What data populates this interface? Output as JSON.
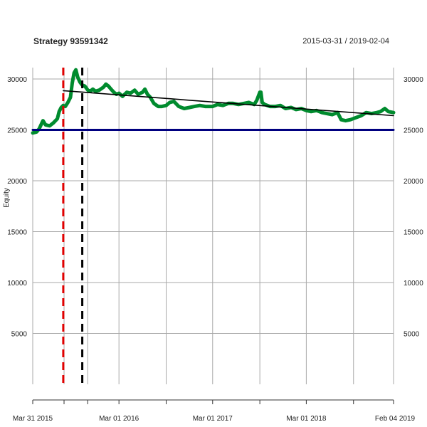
{
  "chart_data": {
    "type": "line",
    "title": "Strategy 93591342",
    "subtitle": "2015-03-31 / 2019-02-04",
    "xlabel": "",
    "ylabel": "Equity",
    "ylim": [
      0,
      31000
    ],
    "xlim": [
      "2015-03-31",
      "2019-02-04"
    ],
    "yticks": [
      5000,
      10000,
      15000,
      20000,
      25000,
      30000
    ],
    "xticks": [
      {
        "label": "Mar 31 2015",
        "date": "2015-03-31"
      },
      {
        "label": "Mar 01 2016",
        "date": "2016-03-01"
      },
      {
        "label": "Mar 01 2017",
        "date": "2017-03-01"
      },
      {
        "label": "Mar 01 2018",
        "date": "2018-03-01"
      },
      {
        "label": "Feb 04 2019",
        "date": "2019-02-04"
      }
    ],
    "minor_xgrid": [
      "2015-07-31",
      "2015-10-31",
      "2016-09-01",
      "2017-09-01",
      "2018-09-01"
    ],
    "grid": true,
    "colors": {
      "equity": "#008b2e",
      "baseline": "#000080",
      "trend": "#000000",
      "marker1": "#e00000",
      "marker2": "#000000",
      "grid": "#a9a9a9"
    },
    "series": [
      {
        "style": "equity",
        "x": [
          "2015-03-31",
          "2015-04-15",
          "2015-04-25",
          "2015-05-10",
          "2015-05-20",
          "2015-06-05",
          "2015-06-20",
          "2015-07-05",
          "2015-07-12",
          "2015-07-20",
          "2015-07-28",
          "2015-08-05",
          "2015-08-15",
          "2015-08-25",
          "2015-09-01",
          "2015-09-08",
          "2015-09-15",
          "2015-09-22",
          "2015-10-01",
          "2015-10-10",
          "2015-10-20",
          "2015-11-01",
          "2015-11-10",
          "2015-11-20",
          "2015-12-01",
          "2015-12-15",
          "2016-01-01",
          "2016-01-10",
          "2016-01-20",
          "2016-01-30",
          "2016-02-10",
          "2016-02-20",
          "2016-03-01",
          "2016-03-15",
          "2016-04-01",
          "2016-04-15",
          "2016-05-01",
          "2016-05-15",
          "2016-06-01",
          "2016-06-10",
          "2016-06-20",
          "2016-07-01",
          "2016-07-15",
          "2016-08-01",
          "2016-08-15",
          "2016-09-01",
          "2016-09-15",
          "2016-10-01",
          "2016-10-20",
          "2016-11-10",
          "2016-12-01",
          "2016-12-20",
          "2017-01-10",
          "2017-02-01",
          "2017-03-01",
          "2017-03-20",
          "2017-04-10",
          "2017-05-01",
          "2017-05-20",
          "2017-06-10",
          "2017-07-01",
          "2017-07-20",
          "2017-08-10",
          "2017-08-20",
          "2017-09-01",
          "2017-09-05",
          "2017-09-10",
          "2017-09-20",
          "2017-10-10",
          "2017-11-01",
          "2017-11-20",
          "2017-12-10",
          "2018-01-01",
          "2018-01-20",
          "2018-02-10",
          "2018-03-01",
          "2018-03-20",
          "2018-04-10",
          "2018-05-01",
          "2018-05-20",
          "2018-06-10",
          "2018-07-01",
          "2018-07-15",
          "2018-08-01",
          "2018-08-20",
          "2018-09-10",
          "2018-10-01",
          "2018-10-20",
          "2018-11-10",
          "2018-12-01",
          "2018-12-15",
          "2019-01-01",
          "2019-01-15",
          "2019-02-04"
        ],
        "y": [
          24700,
          24800,
          25100,
          25900,
          25500,
          25400,
          25700,
          26100,
          26800,
          27200,
          27400,
          27300,
          27700,
          28200,
          29600,
          30600,
          30900,
          30200,
          29700,
          29400,
          29300,
          28900,
          28800,
          29000,
          28800,
          28900,
          29200,
          29500,
          29300,
          29000,
          28700,
          28500,
          28600,
          28300,
          28700,
          28600,
          28900,
          28500,
          28700,
          29000,
          28500,
          28200,
          27600,
          27300,
          27300,
          27400,
          27700,
          27800,
          27300,
          27100,
          27200,
          27300,
          27400,
          27300,
          27300,
          27500,
          27400,
          27600,
          27600,
          27500,
          27600,
          27700,
          27500,
          27900,
          28700,
          28700,
          27700,
          27500,
          27300,
          27300,
          27400,
          27100,
          27200,
          27000,
          27100,
          26900,
          26800,
          26900,
          26700,
          26600,
          26500,
          26700,
          26000,
          25900,
          26000,
          26200,
          26400,
          26700,
          26600,
          26700,
          26800,
          27100,
          26800,
          26700
        ]
      },
      {
        "style": "baseline",
        "x": [
          "2015-03-31",
          "2019-02-04"
        ],
        "y": [
          25000,
          25000
        ]
      },
      {
        "style": "trend",
        "x": [
          "2015-07-28",
          "2019-02-04"
        ],
        "y": [
          28850,
          26400
        ]
      }
    ],
    "markers": [
      {
        "style": "marker1",
        "x": "2015-07-28"
      },
      {
        "style": "marker2",
        "x": "2015-10-10"
      }
    ]
  }
}
